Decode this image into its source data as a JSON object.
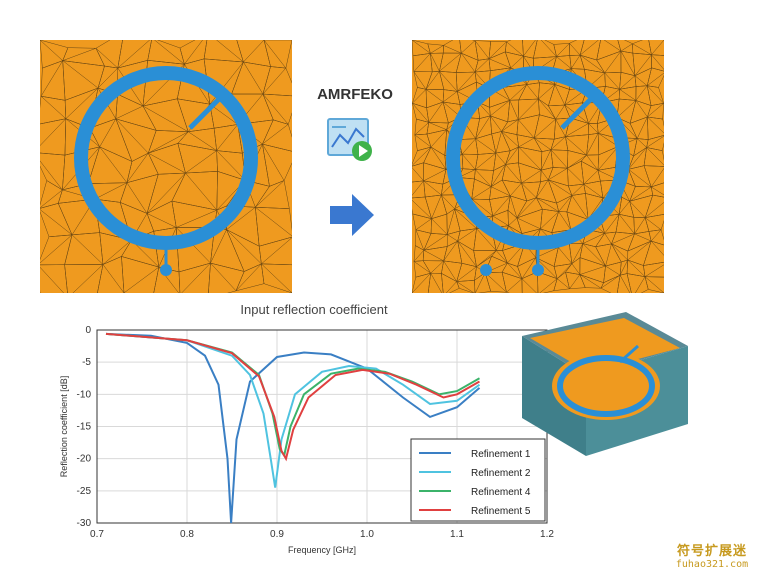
{
  "labels": {
    "method": "AMRFEKO"
  },
  "colors": {
    "mesh_fill": "#ef9a1f",
    "ring": "#2a8fd6",
    "arrow": "#3a78d0",
    "feko_bg": "#5fa8d8",
    "feko_play": "#3fb24a",
    "watermark": "#c79a1f"
  },
  "icons": {
    "feko": "feko-application-icon",
    "arrow": "right-arrow-icon"
  },
  "watermark": {
    "cn": "符号扩展迷",
    "url": "fuhao321.com"
  },
  "chart_data": {
    "type": "line",
    "title": "Input reflection coefficient",
    "xlabel": "Frequency [GHz]",
    "ylabel": "Reflection coefficient [dB]",
    "xlim": [
      0.7,
      1.2
    ],
    "ylim": [
      -30,
      0
    ],
    "xticks": [
      0.7,
      0.8,
      0.9,
      1.0,
      1.1,
      1.2
    ],
    "xtick_labels": [
      "0.7",
      "0.8",
      "0.9",
      "1.0",
      "1.1",
      "1.2"
    ],
    "yticks": [
      0,
      -5,
      -10,
      -15,
      -20,
      -25,
      -30
    ],
    "ytick_labels": [
      "0",
      "-5",
      "-10",
      "-15",
      "-20",
      "-25",
      "-30"
    ],
    "grid": true,
    "legend_position": "bottom-right",
    "series": [
      {
        "name": "Refinement 1",
        "color": "#3a7fc4",
        "x": [
          0.71,
          0.76,
          0.8,
          0.82,
          0.835,
          0.845,
          0.849,
          0.855,
          0.87,
          0.9,
          0.93,
          0.96,
          1.0,
          1.04,
          1.07,
          1.1,
          1.125
        ],
        "y": [
          -0.6,
          -0.9,
          -2.0,
          -4.0,
          -8.5,
          -20.0,
          -30.0,
          -17.0,
          -8.0,
          -4.2,
          -3.5,
          -3.8,
          -6.0,
          -10.5,
          -13.5,
          -12.0,
          -9.0
        ]
      },
      {
        "name": "Refinement 2",
        "color": "#4fc3e0",
        "x": [
          0.71,
          0.8,
          0.85,
          0.87,
          0.885,
          0.893,
          0.898,
          0.905,
          0.92,
          0.95,
          0.98,
          1.01,
          1.04,
          1.07,
          1.1,
          1.125
        ],
        "y": [
          -0.6,
          -1.6,
          -4.0,
          -7.0,
          -13.0,
          -20.0,
          -24.5,
          -17.0,
          -10.0,
          -6.5,
          -5.6,
          -6.0,
          -8.5,
          -11.5,
          -11.0,
          -8.5
        ]
      },
      {
        "name": "Refinement 4",
        "color": "#3bb36a",
        "x": [
          0.71,
          0.8,
          0.85,
          0.88,
          0.895,
          0.903,
          0.908,
          0.915,
          0.93,
          0.96,
          0.99,
          1.02,
          1.05,
          1.08,
          1.1,
          1.125
        ],
        "y": [
          -0.6,
          -1.6,
          -3.5,
          -7.0,
          -13.0,
          -18.5,
          -19.5,
          -15.0,
          -10.0,
          -6.8,
          -6.0,
          -6.5,
          -8.0,
          -10.0,
          -9.5,
          -7.5
        ]
      },
      {
        "name": "Refinement 5",
        "color": "#e04040",
        "x": [
          0.71,
          0.8,
          0.85,
          0.88,
          0.897,
          0.905,
          0.91,
          0.918,
          0.935,
          0.965,
          0.995,
          1.025,
          1.055,
          1.085,
          1.1,
          1.125
        ],
        "y": [
          -0.6,
          -1.6,
          -3.6,
          -7.2,
          -13.5,
          -18.8,
          -20.0,
          -15.5,
          -10.5,
          -7.0,
          -6.2,
          -6.8,
          -8.5,
          -10.5,
          -10.0,
          -8.0
        ]
      }
    ]
  }
}
